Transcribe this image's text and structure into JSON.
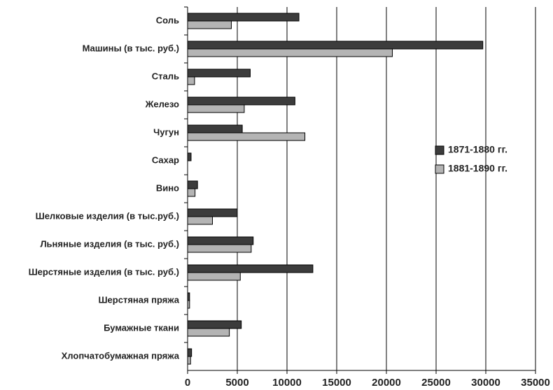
{
  "chart_data": {
    "type": "hbar",
    "categories": [
      "Соль",
      "Машины (в тыс. руб.)",
      "Сталь",
      "Железо",
      "Чугун",
      "Сахар",
      "Вино",
      "Шелковые изделия (в тыс.руб.)",
      "Льняные изделия (в тыс. руб.)",
      "Шерстяные изделия (в тыс. руб.)",
      "Шерстяная пряжа",
      "Бумажные ткани",
      "Хлопчатобумажная пряжа"
    ],
    "series": [
      {
        "name": "1871-1880 гг.",
        "color": "#3c3c3c",
        "values": [
          11200,
          29700,
          6300,
          10800,
          5500,
          350,
          1000,
          5000,
          6600,
          12600,
          200,
          5400,
          400
        ]
      },
      {
        "name": "1881-1890 гг.",
        "color": "#b4b4b4",
        "values": [
          4400,
          20600,
          700,
          5700,
          11800,
          0,
          750,
          2500,
          6400,
          5300,
          200,
          4200,
          300
        ]
      }
    ],
    "xlim": [
      0,
      35000
    ],
    "xticks": [
      0,
      5000,
      10000,
      15000,
      20000,
      25000,
      30000,
      35000
    ],
    "grid": true,
    "legend": "right"
  }
}
